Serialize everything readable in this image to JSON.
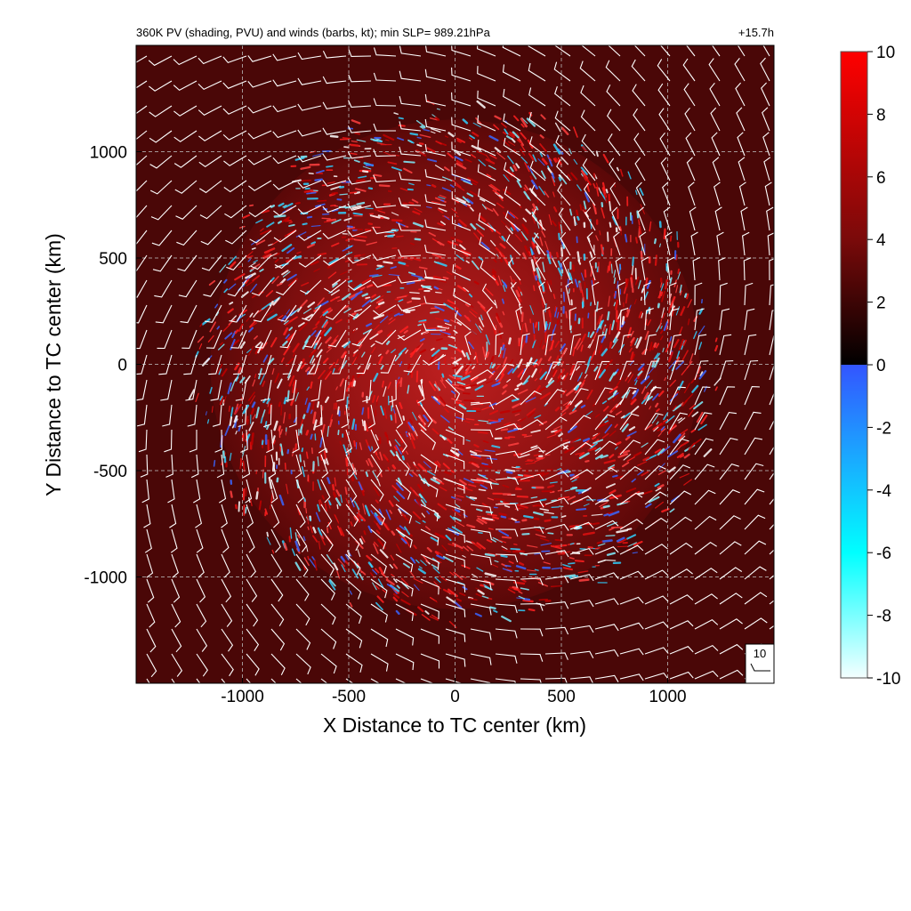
{
  "chart_data": {
    "type": "heatmap",
    "title": "360K PV (shading, PVU) and winds (barbs, kt); min SLP= 989.21hPa",
    "time_label": "+15.7h",
    "xlabel": "X Distance to TC center (km)",
    "ylabel": "Y Distance to TC center (km)",
    "xlim": [
      -1500,
      1500
    ],
    "ylim": [
      -1500,
      1500
    ],
    "xticks": [
      -1000,
      -500,
      0,
      500,
      1000
    ],
    "yticks": [
      -1000,
      -500,
      0,
      500,
      1000
    ],
    "grid": true,
    "colorbar": {
      "min": -10,
      "max": 10,
      "ticks": [
        10,
        8,
        6,
        4,
        2,
        0,
        -2,
        -4,
        -6,
        -8,
        -10
      ],
      "colors": {
        "neg_low": "#f4ffff",
        "neg_mid": "#00ffff",
        "neg_high": "#3355ff",
        "zero": "#000000",
        "pos_mid": "#7a0a0a",
        "pos_high": "#ff0000"
      }
    },
    "background_color": "#4a0707",
    "barb_color": "#ffffff",
    "reference_vector": {
      "label": "10",
      "speed_kt": 10
    }
  }
}
